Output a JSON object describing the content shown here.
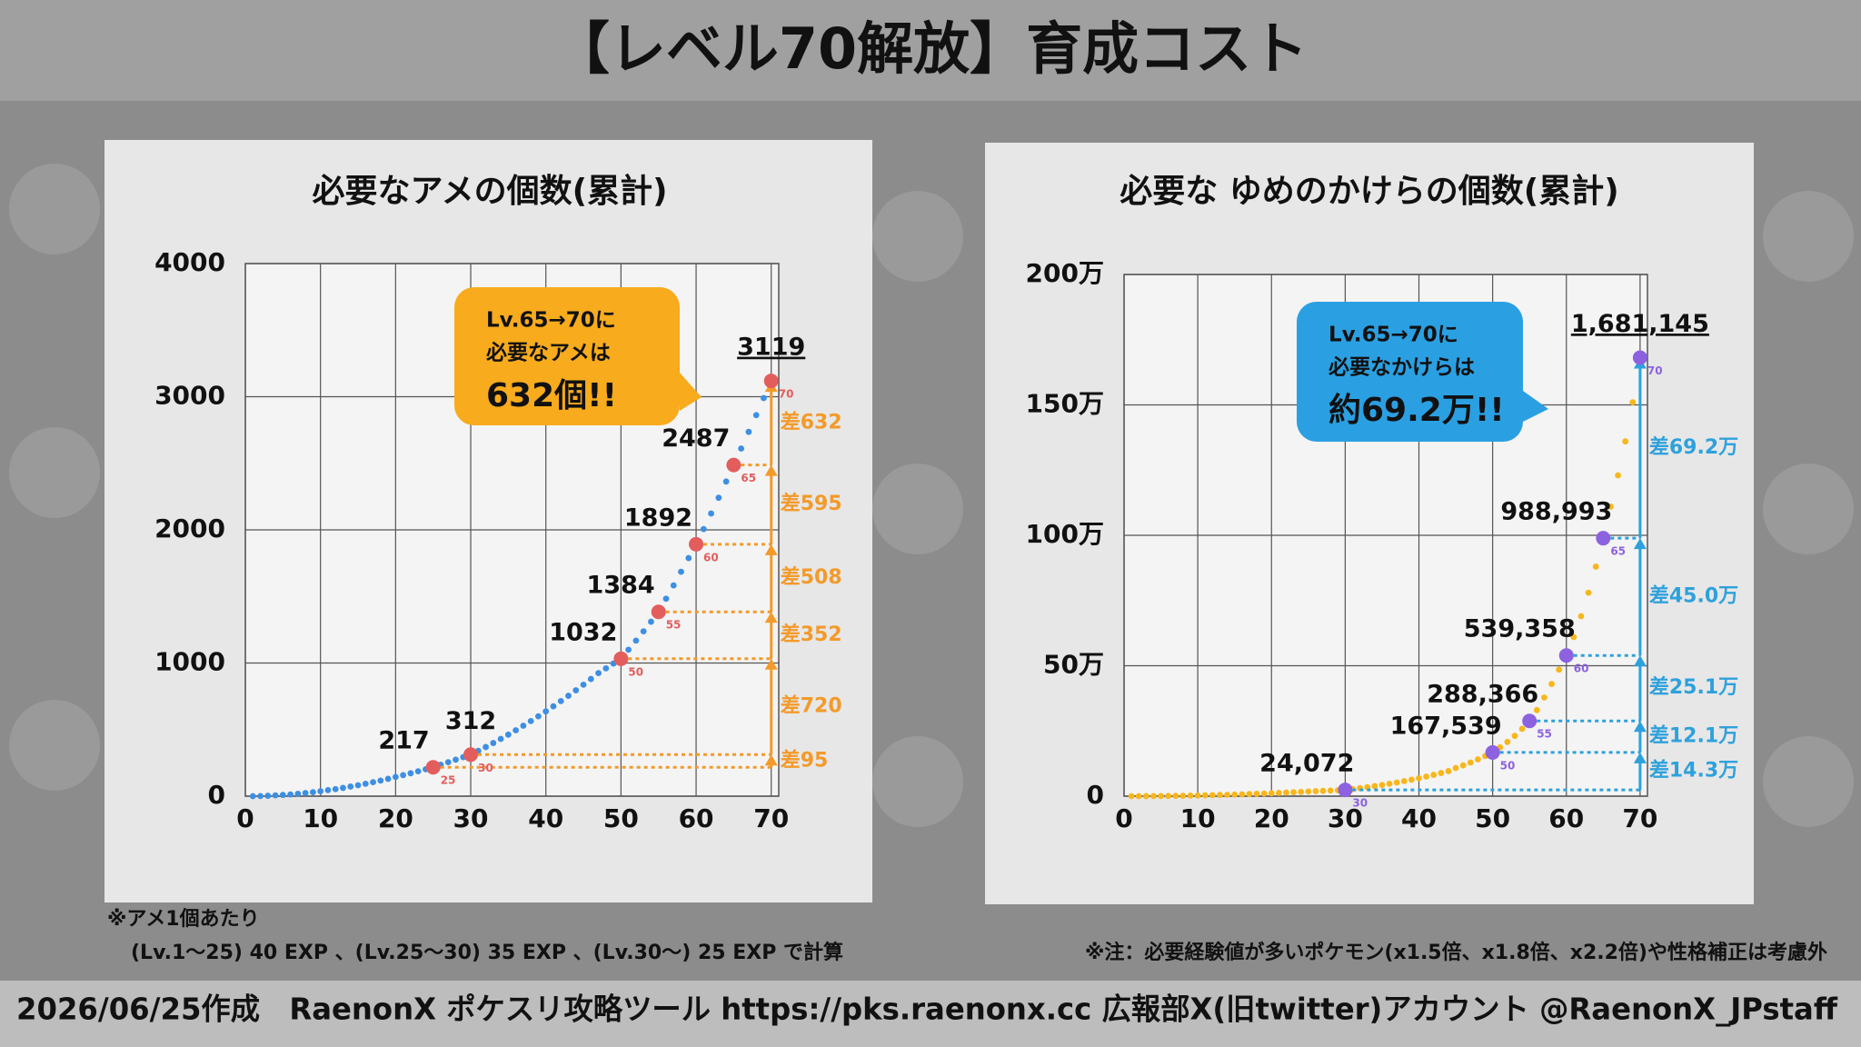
{
  "title": "【レベル70解放】育成コスト",
  "chart_data": [
    {
      "type": "scatter",
      "title": "必要なアメの個数(累計)",
      "x": [
        1,
        2,
        3,
        4,
        5,
        6,
        7,
        8,
        9,
        10,
        11,
        12,
        13,
        14,
        15,
        16,
        17,
        18,
        19,
        20,
        21,
        22,
        23,
        24,
        25,
        26,
        27,
        28,
        29,
        30,
        31,
        32,
        33,
        34,
        35,
        36,
        37,
        38,
        39,
        40,
        41,
        42,
        43,
        44,
        45,
        46,
        47,
        48,
        49,
        50,
        51,
        52,
        53,
        54,
        55,
        56,
        57,
        58,
        59,
        60,
        61,
        62,
        63,
        64,
        65,
        66,
        67,
        68,
        69,
        70
      ],
      "series": [
        {
          "color": "#3d8fe3",
          "values": [
            0,
            1,
            3,
            6,
            9,
            13,
            18,
            24,
            30,
            37,
            45,
            53,
            62,
            72,
            82,
            93,
            105,
            117,
            130,
            144,
            158,
            172,
            187,
            202,
            217,
            236,
            255,
            274,
            293,
            312,
            340,
            369,
            399,
            430,
            462,
            495,
            529,
            564,
            600,
            637,
            675,
            714,
            754,
            795,
            837,
            880,
            924,
            960,
            996,
            1032,
            1100,
            1168,
            1238,
            1310,
            1384,
            1483,
            1583,
            1685,
            1788,
            1892,
            2006,
            2123,
            2241,
            2363,
            2487,
            2611,
            2736,
            2862,
            2990,
            3119
          ]
        }
      ],
      "points": {
        "color": "#e35d5d",
        "x": [
          25,
          30,
          50,
          55,
          60,
          65,
          70
        ],
        "values": [
          217,
          312,
          1032,
          1384,
          1892,
          2487,
          3119
        ]
      },
      "differences": {
        "color": "#f39a2a",
        "labels": [
          "差95",
          "差720",
          "差352",
          "差508",
          "差595",
          "差632"
        ]
      },
      "callout": {
        "color": "#f7ab1d",
        "lines": [
          "Lv.65→70に",
          "必要なアメは",
          "632個!!"
        ]
      },
      "xlim": [
        0,
        71
      ],
      "xticks": [
        0,
        10,
        20,
        30,
        40,
        50,
        60,
        70
      ],
      "ylim": [
        0,
        4000
      ],
      "yticks": [
        0,
        1000,
        2000,
        3000,
        4000
      ],
      "grid": true
    },
    {
      "type": "scatter",
      "title": "必要な ゆめのかけらの個数(累計)",
      "x": [
        1,
        2,
        3,
        4,
        5,
        6,
        7,
        8,
        9,
        10,
        11,
        12,
        13,
        14,
        15,
        16,
        17,
        18,
        19,
        20,
        21,
        22,
        23,
        24,
        25,
        26,
        27,
        28,
        29,
        30,
        31,
        32,
        33,
        34,
        35,
        36,
        37,
        38,
        39,
        40,
        41,
        42,
        43,
        44,
        45,
        46,
        47,
        48,
        49,
        50,
        51,
        52,
        53,
        54,
        55,
        56,
        57,
        58,
        59,
        60,
        61,
        62,
        63,
        64,
        65,
        66,
        67,
        68,
        69,
        70
      ],
      "series": [
        {
          "color": "#f7b71c",
          "values": [
            0,
            40,
            150,
            320,
            550,
            840,
            1190,
            1600,
            2070,
            2600,
            3190,
            3840,
            4550,
            5320,
            6150,
            7040,
            7990,
            9000,
            10070,
            11200,
            12390,
            13640,
            14950,
            16320,
            17750,
            19000,
            20200,
            21400,
            22700,
            24072,
            27300,
            30800,
            34500,
            38500,
            42800,
            47400,
            52300,
            57500,
            63000,
            68800,
            75000,
            81600,
            88600,
            96000,
            108000,
            118000,
            129000,
            141000,
            154000,
            167539,
            187000,
            208000,
            231000,
            258000,
            288366,
            330000,
            378000,
            430000,
            485000,
            539358,
            610000,
            690000,
            780000,
            880000,
            988993,
            1110000,
            1230000,
            1360000,
            1510000,
            1681145
          ]
        }
      ],
      "points": {
        "color": "#8c62e0",
        "x": [
          30,
          50,
          55,
          60,
          65,
          70
        ],
        "values": [
          24072,
          167539,
          288366,
          539358,
          988993,
          1681145
        ],
        "value_labels": [
          "24,072",
          "167,539",
          "288,366",
          "539,358",
          "988,993",
          "1,681,145"
        ]
      },
      "differences": {
        "color": "#2ea1dc",
        "labels": [
          "差14.3万",
          "差12.1万",
          "差25.1万",
          "差45.0万",
          "差69.2万"
        ]
      },
      "callout": {
        "color": "#2aa0e2",
        "lines": [
          "Lv.65→70に",
          "必要なかけらは",
          "約69.2万!!"
        ]
      },
      "xlim": [
        0,
        71
      ],
      "xticks": [
        0,
        10,
        20,
        30,
        40,
        50,
        60,
        70
      ],
      "ylim": [
        0,
        2000000
      ],
      "yticks": [
        0,
        {
          "value": 500000,
          "label": "50万"
        },
        {
          "value": 1000000,
          "label": "100万"
        },
        {
          "value": 1500000,
          "label": "150万"
        },
        {
          "value": 2000000,
          "label": "200万"
        }
      ],
      "grid": true
    }
  ],
  "notes": [
    "※アメ1個あたり",
    "(Lv.1〜25) 40 EXP 、(Lv.25〜30) 35 EXP 、(Lv.30〜) 25 EXP で計算",
    "※注：必要経験値が多いポケモン(x1.5倍、x1.8倍、x2.2倍)や性格補正は考慮外"
  ],
  "footer": "2026/06/25作成　RaenonX ポケスリ攻略ツール https://pks.raenonx.cc 広報部X(旧twitter)アカウント @RaenonX_JPstaff"
}
